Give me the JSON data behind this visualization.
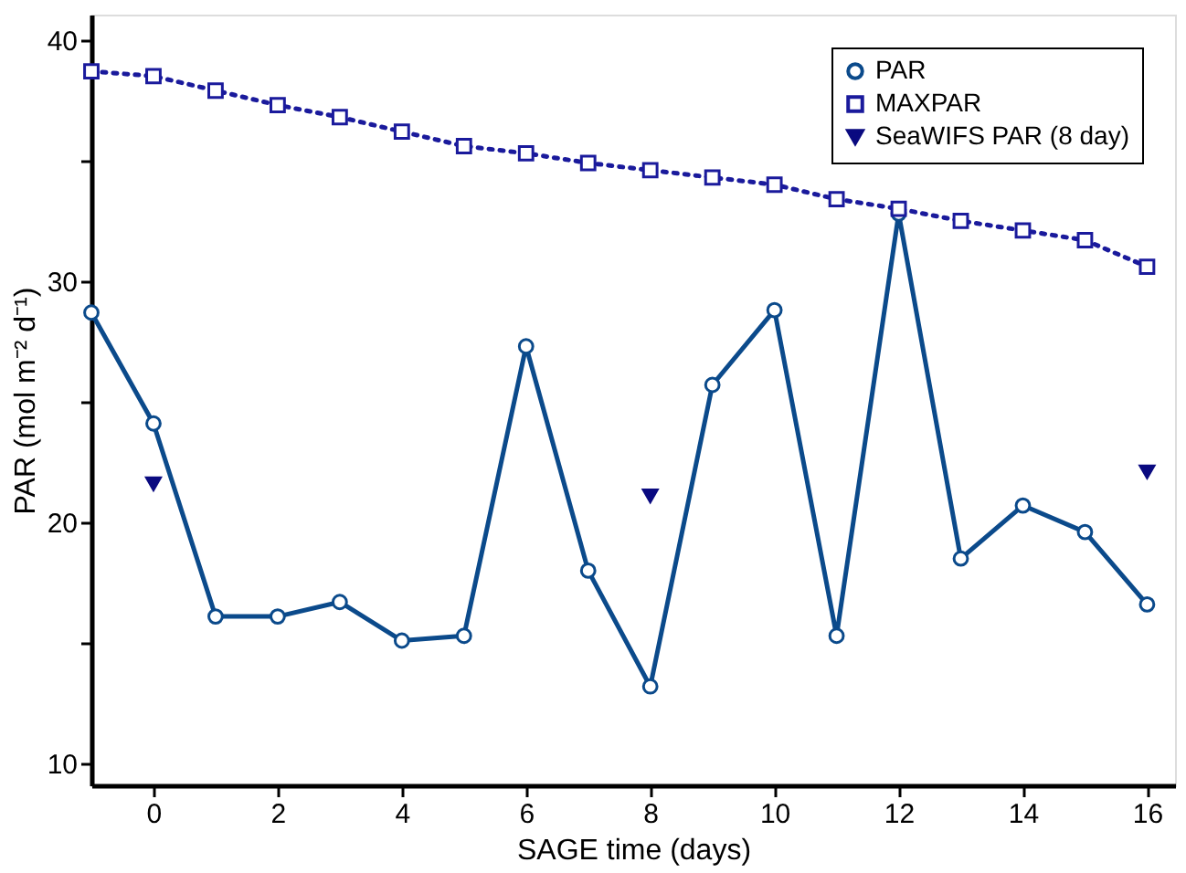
{
  "chart_data": {
    "type": "line",
    "xlabel": "SAGE time (days)",
    "ylabel": "PAR (mol m⁻² d⁻¹)",
    "xlim": [
      -1,
      16.45
    ],
    "xticks": [
      0,
      2,
      4,
      6,
      8,
      10,
      12,
      14,
      16
    ],
    "ylim": [
      9.1,
      41.05
    ],
    "yticks": [
      10,
      {
        "value": 15,
        "label": null
      },
      20,
      {
        "value": 25,
        "label": null
      },
      30,
      {
        "value": 35,
        "label": null
      },
      40
    ],
    "grid": false,
    "legend": "top right",
    "series": [
      {
        "name": "PAR",
        "color": "#0b4a8b",
        "marker": "circle",
        "line_style": "solid",
        "x": [
          -1,
          0,
          1,
          2,
          3,
          4,
          5,
          6,
          7,
          8,
          9,
          10,
          11,
          12,
          13,
          14,
          15,
          16
        ],
        "values": [
          28.7,
          24.1,
          16.1,
          16.1,
          16.7,
          15.1,
          15.3,
          27.3,
          18.0,
          13.2,
          25.7,
          28.8,
          15.3,
          32.8,
          18.5,
          20.7,
          19.6,
          16.6
        ]
      },
      {
        "name": "MAXPAR",
        "color": "#1a1a9c",
        "marker": "square",
        "line_style": "dotted",
        "x": [
          -1,
          0,
          1,
          2,
          3,
          4,
          5,
          6,
          7,
          8,
          9,
          10,
          11,
          12,
          13,
          14,
          15,
          16
        ],
        "values": [
          38.7,
          38.5,
          37.9,
          37.3,
          36.8,
          36.2,
          35.6,
          35.3,
          34.9,
          34.6,
          34.3,
          34.0,
          33.4,
          33.0,
          32.5,
          32.1,
          31.7,
          30.6
        ]
      },
      {
        "name": "SeaWIFS PAR (8 day)",
        "type": "scatter",
        "color": "#0a0a80",
        "marker": "triangle",
        "x": [
          0,
          8,
          16
        ],
        "values": [
          21.6,
          21.1,
          22.1
        ]
      }
    ]
  }
}
